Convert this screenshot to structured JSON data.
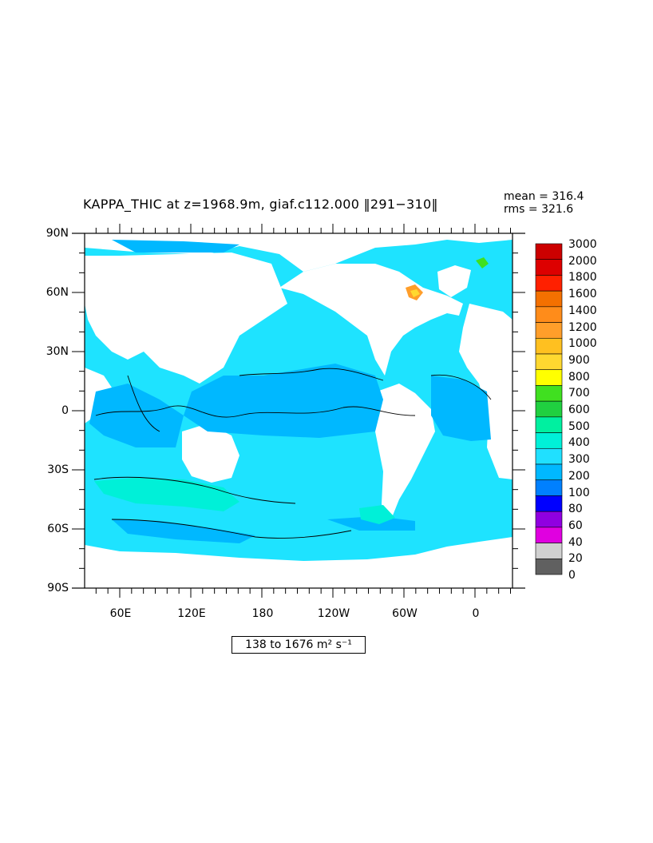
{
  "title": "KAPPA_THIC at z=1968.9m, giaf.c112.000 ‖291−310‖",
  "stats": {
    "mean": "mean = 316.4",
    "rms": "rms = 321.6"
  },
  "range_box": "138 to 1676 m² s⁻¹",
  "y_ticks": [
    "90N",
    "60N",
    "30N",
    "0",
    "30S",
    "60S",
    "90S"
  ],
  "x_ticks": [
    "60E",
    "120E",
    "180",
    "120W",
    "60W",
    "0"
  ],
  "colorbar": {
    "labels": [
      "3000",
      "2000",
      "1800",
      "1600",
      "1400",
      "1200",
      "1000",
      "900",
      "800",
      "700",
      "600",
      "500",
      "400",
      "300",
      "200",
      "100",
      "80",
      "60",
      "40",
      "20",
      "0"
    ],
    "colors": [
      "#cc0000",
      "#dd0000",
      "#ff2000",
      "#f47000",
      "#ff8c1a",
      "#ff9e2a",
      "#ffc020",
      "#ffd830",
      "#ffff00",
      "#40e020",
      "#20d040",
      "#00f0a0",
      "#00f0d8",
      "#20e0ff",
      "#00b8ff",
      "#0080ff",
      "#0000ff",
      "#9000e0",
      "#e000e0",
      "#d0d0d0",
      "#606060"
    ]
  },
  "chart_data": {
    "type": "heatmap",
    "title": "KAPPA_THIC at z=1968.9m, giaf.c112.000 ‖291−310‖",
    "variable": "KAPPA_THIC",
    "units": "m² s⁻¹",
    "mean": 316.4,
    "rms": 321.6,
    "min": 138,
    "max": 1676,
    "lat_range": [
      -90,
      90
    ],
    "x_tick_labels": [
      "60E",
      "120E",
      "180",
      "120W",
      "60W",
      "0"
    ],
    "y_tick_labels": [
      "90N",
      "60N",
      "30N",
      "0",
      "30S",
      "60S",
      "90S"
    ],
    "contour_levels": [
      0,
      20,
      40,
      60,
      80,
      100,
      200,
      300,
      400,
      500,
      600,
      700,
      800,
      900,
      1000,
      1200,
      1400,
      1600,
      1800,
      2000,
      3000
    ],
    "dominant_values": {
      "most_ocean": "300-400",
      "equatorial_and_western_bands": "200-300",
      "southern_ocean_patches": "400-500",
      "high_latitude_hotspots": "800-1600"
    }
  }
}
